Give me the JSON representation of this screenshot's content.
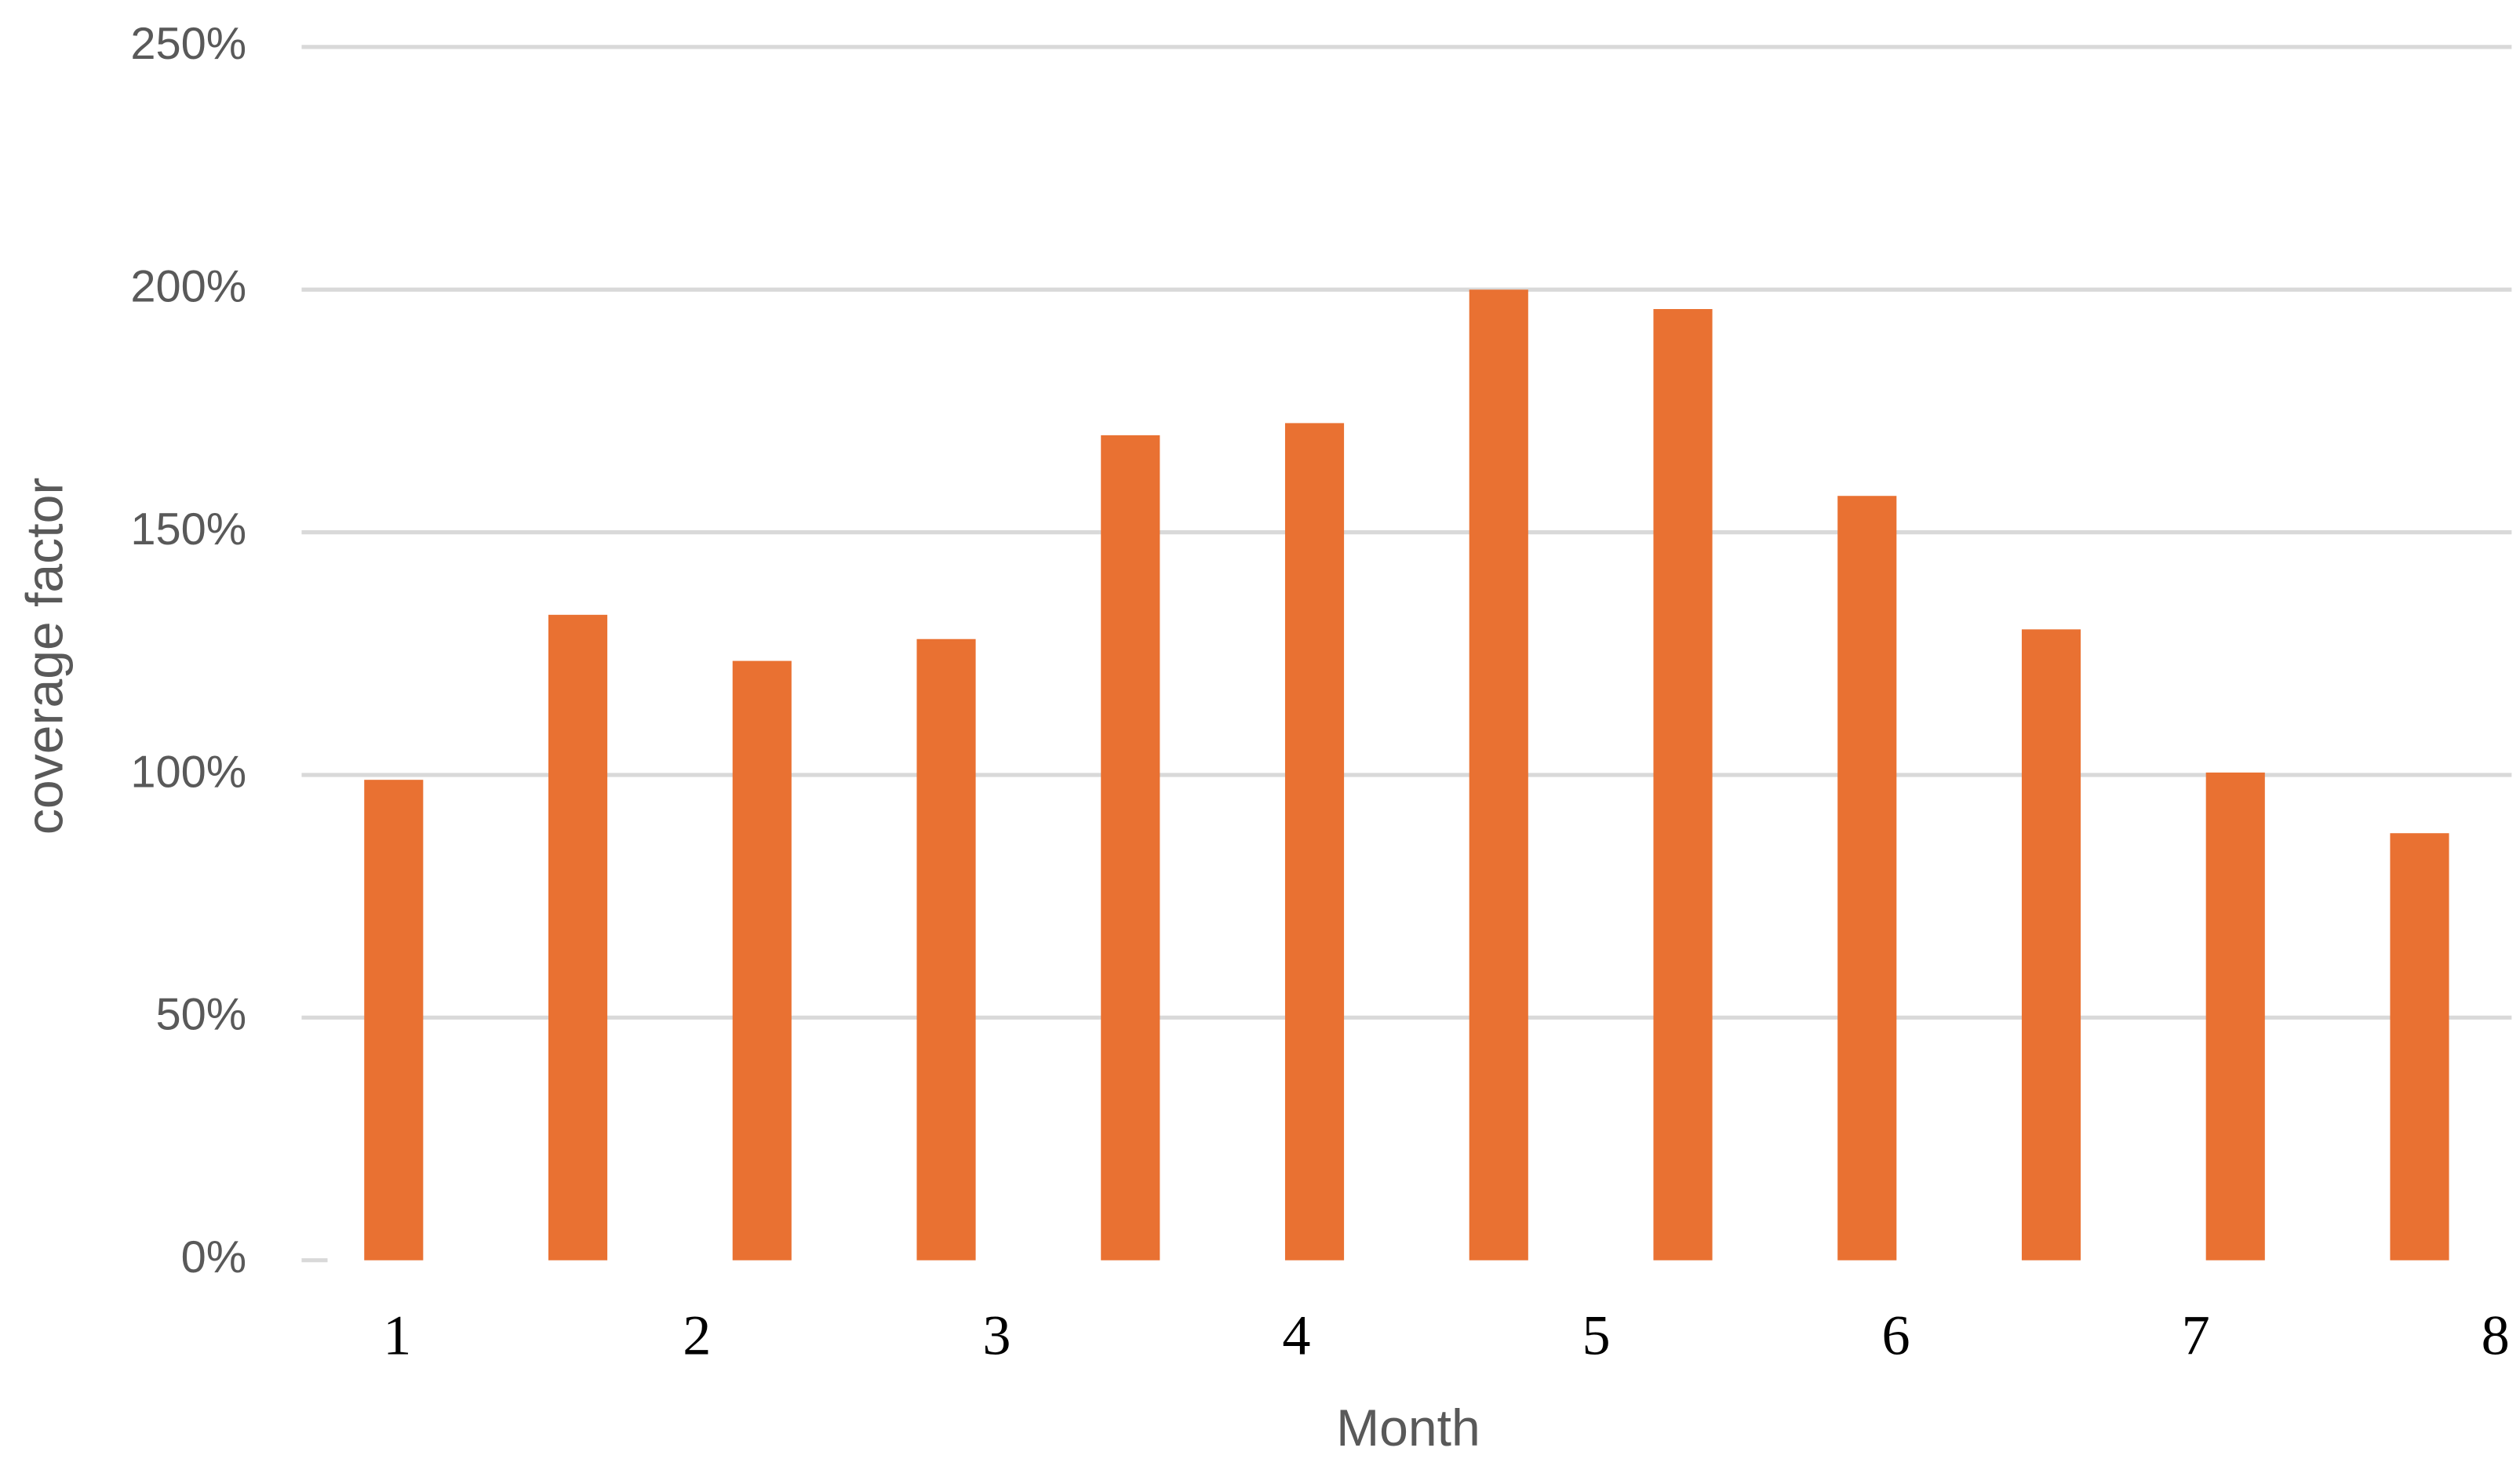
{
  "chart_data": {
    "type": "bar",
    "y_label": "coverage factor",
    "x_label": "Month",
    "categories": [
      null,
      null,
      null,
      null,
      null,
      null,
      null,
      null,
      null,
      null,
      null,
      null
    ],
    "values": [
      99,
      133,
      123.5,
      128,
      170,
      172.5,
      200,
      196,
      157.5,
      130,
      100.5,
      88
    ],
    "color": "#e97132",
    "ylim": [
      0,
      250
    ],
    "yticks": [
      {
        "value": 0,
        "label": "0%"
      },
      {
        "value": 50,
        "label": "50%"
      },
      {
        "value": 100,
        "label": "100%"
      },
      {
        "value": 150,
        "label": "150%"
      },
      {
        "value": 200,
        "label": "200%"
      },
      {
        "value": 250,
        "label": "250%"
      }
    ],
    "xlim": [
      1,
      8
    ],
    "xticks": [
      1,
      2,
      3,
      4,
      5,
      6,
      7,
      8
    ],
    "grid": true
  }
}
